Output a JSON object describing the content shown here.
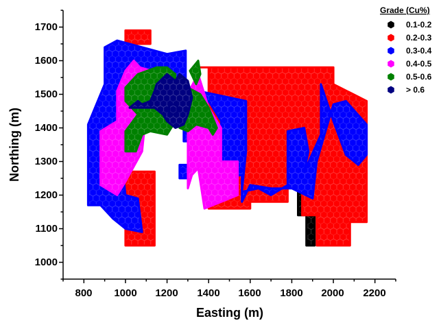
{
  "chart_data": {
    "type": "scatter",
    "title": "",
    "xlabel": "Easting (m)",
    "ylabel": "Northing (m)",
    "xlim": [
      700,
      2300
    ],
    "ylim": [
      950,
      1750
    ],
    "x_ticks": [
      "800",
      "1000",
      "1200",
      "1400",
      "1600",
      "1800",
      "2000",
      "2200"
    ],
    "y_ticks": [
      "1000",
      "1100",
      "1200",
      "1300",
      "1400",
      "1500",
      "1600",
      "1700"
    ],
    "grid": false,
    "legend_position": "top-right",
    "legend_title": "Grade (Cu%)",
    "marker": "hexagon",
    "series": [
      {
        "name": "0.1-0.2",
        "color": "#000000",
        "regions": [
          [
            [
              1500,
              1185
            ],
            [
              1570,
              1185
            ],
            [
              1570,
              1165
            ],
            [
              1500,
              1165
            ]
          ],
          [
            [
              1830,
              1140
            ],
            [
              1870,
              1140
            ],
            [
              1870,
              1230
            ],
            [
              1830,
              1230
            ]
          ],
          [
            [
              1870,
              1050
            ],
            [
              1910,
              1050
            ],
            [
              1910,
              1240
            ],
            [
              1870,
              1240
            ]
          ],
          [
            [
              1880,
              1530
            ],
            [
              1990,
              1530
            ],
            [
              1990,
              1555
            ],
            [
              1880,
              1555
            ]
          ]
        ]
      },
      {
        "name": "0.2-0.3",
        "color": "#ff0000",
        "regions": [
          [
            [
              1000,
              1650
            ],
            [
              1120,
              1650
            ],
            [
              1120,
              1690
            ],
            [
              1000,
              1690
            ]
          ],
          [
            [
              1000,
              1050
            ],
            [
              1140,
              1050
            ],
            [
              1140,
              1270
            ],
            [
              1000,
              1270
            ]
          ],
          [
            [
              1360,
              1580
            ],
            [
              2000,
              1580
            ],
            [
              2000,
              1530
            ],
            [
              2160,
              1480
            ],
            [
              2160,
              1120
            ],
            [
              2080,
              1120
            ],
            [
              2080,
              1050
            ],
            [
              1920,
              1050
            ],
            [
              1920,
              1140
            ],
            [
              1850,
              1140
            ],
            [
              1850,
              1230
            ],
            [
              1780,
              1230
            ],
            [
              1780,
              1180
            ],
            [
              1600,
              1180
            ],
            [
              1600,
              1160
            ],
            [
              1400,
              1160
            ],
            [
              1400,
              1580
            ]
          ]
        ]
      },
      {
        "name": "0.3-0.4",
        "color": "#0000ff",
        "regions": [
          [
            [
              820,
              1170
            ],
            [
              820,
              1410
            ],
            [
              900,
              1530
            ],
            [
              900,
              1640
            ],
            [
              960,
              1660
            ],
            [
              1200,
              1620
            ],
            [
              1290,
              1630
            ],
            [
              1290,
              1520
            ],
            [
              1200,
              1520
            ],
            [
              1060,
              1420
            ],
            [
              980,
              1320
            ],
            [
              1000,
              1200
            ],
            [
              1060,
              1190
            ],
            [
              1080,
              1090
            ],
            [
              1000,
              1100
            ],
            [
              940,
              1130
            ],
            [
              880,
              1170
            ]
          ],
          [
            [
              1280,
              1360
            ],
            [
              1340,
              1360
            ],
            [
              1340,
              1420
            ],
            [
              1280,
              1420
            ]
          ],
          [
            [
              1260,
              1250
            ],
            [
              1310,
              1250
            ],
            [
              1310,
              1290
            ],
            [
              1260,
              1290
            ]
          ],
          [
            [
              1350,
              1510
            ],
            [
              1580,
              1480
            ],
            [
              1580,
              1330
            ],
            [
              1560,
              1210
            ],
            [
              1640,
              1220
            ],
            [
              1700,
              1200
            ],
            [
              1780,
              1230
            ],
            [
              1780,
              1390
            ],
            [
              1860,
              1400
            ],
            [
              1880,
              1330
            ],
            [
              1860,
              1270
            ],
            [
              1940,
              1380
            ],
            [
              1940,
              1530
            ],
            [
              2000,
              1420
            ],
            [
              2060,
              1320
            ],
            [
              2120,
              1290
            ],
            [
              2160,
              1320
            ],
            [
              2160,
              1410
            ],
            [
              2060,
              1480
            ],
            [
              2000,
              1470
            ],
            [
              1920,
              1300
            ],
            [
              1900,
              1190
            ],
            [
              1800,
              1220
            ],
            [
              1700,
              1220
            ],
            [
              1600,
              1230
            ],
            [
              1560,
              1180
            ],
            [
              1560,
              1260
            ],
            [
              1460,
              1250
            ],
            [
              1460,
              1420
            ],
            [
              1400,
              1480
            ],
            [
              1350,
              1460
            ]
          ]
        ]
      },
      {
        "name": "0.4-0.5",
        "color": "#ff00ff",
        "regions": [
          [
            [
              880,
              1230
            ],
            [
              880,
              1390
            ],
            [
              960,
              1420
            ],
            [
              960,
              1510
            ],
            [
              1000,
              1570
            ],
            [
              1040,
              1600
            ],
            [
              1070,
              1580
            ],
            [
              1180,
              1560
            ],
            [
              1180,
              1530
            ],
            [
              1100,
              1450
            ],
            [
              1080,
              1330
            ],
            [
              1000,
              1240
            ],
            [
              960,
              1200
            ]
          ],
          [
            [
              1280,
              1480
            ],
            [
              1350,
              1560
            ],
            [
              1400,
              1460
            ],
            [
              1460,
              1400
            ],
            [
              1460,
              1300
            ],
            [
              1540,
              1300
            ],
            [
              1540,
              1200
            ],
            [
              1460,
              1180
            ],
            [
              1380,
              1160
            ],
            [
              1350,
              1280
            ],
            [
              1320,
              1260
            ],
            [
              1300,
              1220
            ],
            [
              1300,
              1450
            ]
          ]
        ]
      },
      {
        "name": "0.5-0.6",
        "color": "#008000",
        "regions": [
          [
            [
              1000,
              1330
            ],
            [
              1050,
              1330
            ],
            [
              1080,
              1380
            ],
            [
              1120,
              1390
            ],
            [
              1200,
              1380
            ],
            [
              1240,
              1420
            ],
            [
              1240,
              1560
            ],
            [
              1200,
              1580
            ],
            [
              1150,
              1580
            ],
            [
              1060,
              1560
            ],
            [
              1000,
              1520
            ],
            [
              1000,
              1480
            ],
            [
              1060,
              1440
            ],
            [
              1000,
              1390
            ]
          ],
          [
            [
              1260,
              1400
            ],
            [
              1300,
              1390
            ],
            [
              1340,
              1410
            ],
            [
              1400,
              1400
            ],
            [
              1420,
              1380
            ],
            [
              1440,
              1400
            ],
            [
              1400,
              1460
            ],
            [
              1360,
              1500
            ],
            [
              1300,
              1520
            ],
            [
              1260,
              1480
            ]
          ],
          [
            [
              1310,
              1570
            ],
            [
              1350,
              1600
            ],
            [
              1360,
              1560
            ],
            [
              1340,
              1530
            ]
          ]
        ]
      },
      {
        "name": "> 0.6",
        "color": "#000080",
        "regions": [
          [
            [
              1020,
              1460
            ],
            [
              1060,
              1480
            ],
            [
              1080,
              1470
            ],
            [
              1120,
              1480
            ],
            [
              1140,
              1510
            ],
            [
              1150,
              1530
            ],
            [
              1200,
              1560
            ],
            [
              1240,
              1540
            ],
            [
              1260,
              1560
            ],
            [
              1300,
              1540
            ],
            [
              1320,
              1490
            ],
            [
              1300,
              1440
            ],
            [
              1280,
              1410
            ],
            [
              1240,
              1400
            ],
            [
              1200,
              1420
            ],
            [
              1180,
              1440
            ],
            [
              1140,
              1460
            ],
            [
              1100,
              1460
            ],
            [
              1060,
              1460
            ]
          ],
          [
            [
              1210,
              1440
            ],
            [
              1250,
              1440
            ],
            [
              1250,
              1470
            ],
            [
              1210,
              1470
            ]
          ]
        ]
      }
    ]
  }
}
